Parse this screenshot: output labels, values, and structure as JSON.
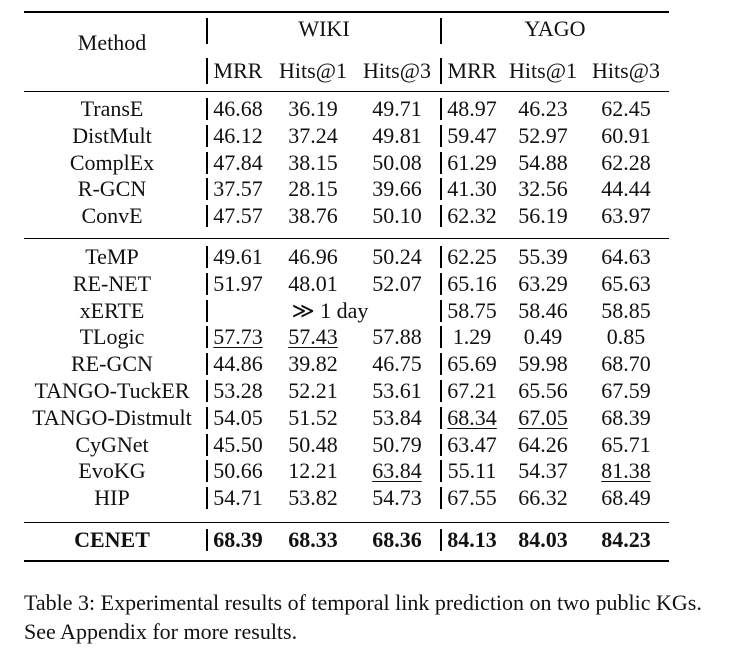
{
  "table": {
    "header": {
      "method": "Method",
      "groups": [
        "WIKI",
        "YAGO"
      ],
      "metrics": [
        "MRR",
        "Hits@1",
        "Hits@3",
        "MRR",
        "Hits@1",
        "Hits@3"
      ]
    },
    "blocks": [
      [
        {
          "method": "TransE",
          "values": [
            "46.68",
            "36.19",
            "49.71",
            "48.97",
            "46.23",
            "62.45"
          ]
        },
        {
          "method": "DistMult",
          "values": [
            "46.12",
            "37.24",
            "49.81",
            "59.47",
            "52.97",
            "60.91"
          ]
        },
        {
          "method": "ComplEx",
          "values": [
            "47.84",
            "38.15",
            "50.08",
            "61.29",
            "54.88",
            "62.28"
          ]
        },
        {
          "method": "R-GCN",
          "values": [
            "37.57",
            "28.15",
            "39.66",
            "41.30",
            "32.56",
            "44.44"
          ]
        },
        {
          "method": "ConvE",
          "values": [
            "47.57",
            "38.76",
            "50.10",
            "62.32",
            "56.19",
            "63.97"
          ]
        }
      ],
      [
        {
          "method": "TeMP",
          "values": [
            "49.61",
            "46.96",
            "50.24",
            "62.25",
            "55.39",
            "64.63"
          ]
        },
        {
          "method": "RE-NET",
          "values": [
            "51.97",
            "48.01",
            "52.07",
            "65.16",
            "63.29",
            "65.63"
          ]
        },
        {
          "method": "xERTE",
          "span_text": "≫ 1 day",
          "values": [
            "",
            "",
            "",
            "58.75",
            "58.46",
            "58.85"
          ]
        },
        {
          "method": "TLogic",
          "values": [
            "57.73",
            "57.43",
            "57.88",
            "1.29",
            "0.49",
            "0.85"
          ],
          "underline": [
            0,
            1
          ]
        },
        {
          "method": "RE-GCN",
          "values": [
            "44.86",
            "39.82",
            "46.75",
            "65.69",
            "59.98",
            "68.70"
          ]
        },
        {
          "method": "TANGO-TuckER",
          "values": [
            "53.28",
            "52.21",
            "53.61",
            "67.21",
            "65.56",
            "67.59"
          ]
        },
        {
          "method": "TANGO-Distmult",
          "values": [
            "54.05",
            "51.52",
            "53.84",
            "68.34",
            "67.05",
            "68.39"
          ],
          "underline": [
            3,
            4
          ]
        },
        {
          "method": "CyGNet",
          "values": [
            "45.50",
            "50.48",
            "50.79",
            "63.47",
            "64.26",
            "65.71"
          ]
        },
        {
          "method": "EvoKG",
          "values": [
            "50.66",
            "12.21",
            "63.84",
            "55.11",
            "54.37",
            "81.38"
          ],
          "underline": [
            2,
            5
          ]
        },
        {
          "method": "HIP",
          "values": [
            "54.71",
            "53.82",
            "54.73",
            "67.55",
            "66.32",
            "68.49"
          ]
        }
      ],
      [
        {
          "method": "CENET",
          "values": [
            "68.39",
            "68.33",
            "68.36",
            "84.13",
            "84.03",
            "84.23"
          ],
          "bold": true
        }
      ]
    ]
  },
  "caption": "Table 3: Experimental results of temporal link prediction on two public KGs. See Appendix for more results."
}
